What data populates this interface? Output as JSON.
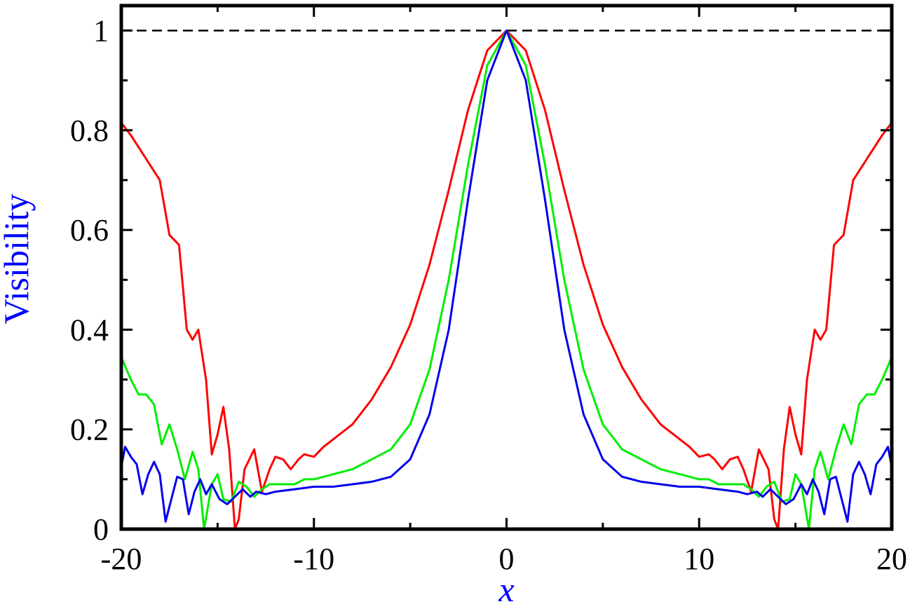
{
  "chart_data": {
    "type": "line",
    "xlabel": "x",
    "ylabel": "Visibility",
    "xlim": [
      -20,
      20
    ],
    "ylim": [
      0,
      1.05
    ],
    "x_ticks": [
      "-20",
      "-10",
      "0",
      "10",
      "20"
    ],
    "y_ticks": [
      "0",
      "0.2",
      "0.4",
      "0.6",
      "0.8",
      "1"
    ],
    "x_tick_values": [
      -20,
      -10,
      0,
      10,
      20
    ],
    "y_tick_values": [
      0,
      0.2,
      0.4,
      0.6,
      0.8,
      1
    ],
    "reference_line": {
      "y": 1,
      "style": "dashed",
      "color": "#000000"
    },
    "grid": false,
    "legend": "none",
    "label_colors": {
      "xlabel": "#0000ff",
      "ylabel": "#0000ff"
    },
    "series": [
      {
        "color": "#ff0000",
        "x": [
          0,
          1,
          2,
          3,
          4,
          5,
          6,
          7,
          8,
          9,
          9.5,
          10,
          10.5,
          10.8,
          11.2,
          11.6,
          12,
          12.3,
          12.7,
          13.1,
          13.6,
          13.9,
          14.1,
          14.4,
          14.7,
          15.0,
          15.3,
          15.6,
          16.0,
          16.3,
          16.6,
          17.0,
          17.5,
          18,
          18.5,
          19,
          19.5,
          20
        ],
        "y": [
          1.0,
          0.96,
          0.84,
          0.68,
          0.53,
          0.41,
          0.325,
          0.26,
          0.21,
          0.18,
          0.165,
          0.145,
          0.15,
          0.14,
          0.12,
          0.14,
          0.145,
          0.12,
          0.075,
          0.16,
          0.12,
          0.02,
          0.0,
          0.16,
          0.245,
          0.19,
          0.15,
          0.3,
          0.4,
          0.38,
          0.4,
          0.57,
          0.59,
          0.7,
          0.73,
          0.76,
          0.79,
          0.815
        ]
      },
      {
        "color": "#00ee00",
        "x": [
          0,
          1,
          2,
          3,
          4,
          5,
          6,
          7,
          8,
          9,
          10,
          10.5,
          11,
          11.5,
          12,
          12.3,
          12.7,
          13.1,
          13.5,
          13.9,
          14.3,
          14.7,
          15.0,
          15.3,
          15.7,
          16.0,
          16.3,
          16.7,
          17.1,
          17.5,
          17.9,
          18.3,
          18.7,
          19.1,
          19.5,
          20
        ],
        "y": [
          1.0,
          0.93,
          0.73,
          0.5,
          0.32,
          0.21,
          0.16,
          0.14,
          0.12,
          0.11,
          0.1,
          0.1,
          0.09,
          0.09,
          0.09,
          0.09,
          0.08,
          0.065,
          0.085,
          0.095,
          0.055,
          0.06,
          0.11,
          0.09,
          0.0,
          0.12,
          0.155,
          0.1,
          0.16,
          0.21,
          0.17,
          0.25,
          0.27,
          0.27,
          0.3,
          0.345
        ]
      },
      {
        "color": "#0000ee",
        "x": [
          0,
          1,
          2,
          3,
          4,
          5,
          6,
          7,
          8,
          9,
          10,
          11,
          12,
          12.5,
          13,
          13.3,
          13.7,
          14.1,
          14.5,
          14.9,
          15.3,
          15.6,
          15.9,
          16.2,
          16.5,
          16.8,
          17.1,
          17.4,
          17.7,
          18.0,
          18.3,
          18.6,
          18.9,
          19.2,
          19.5,
          19.8,
          20
        ],
        "y": [
          1.0,
          0.9,
          0.66,
          0.4,
          0.23,
          0.14,
          0.105,
          0.095,
          0.09,
          0.085,
          0.085,
          0.08,
          0.075,
          0.07,
          0.075,
          0.065,
          0.08,
          0.065,
          0.05,
          0.06,
          0.09,
          0.07,
          0.1,
          0.075,
          0.03,
          0.1,
          0.105,
          0.06,
          0.015,
          0.11,
          0.135,
          0.11,
          0.07,
          0.13,
          0.145,
          0.165,
          0.125
        ]
      }
    ]
  }
}
